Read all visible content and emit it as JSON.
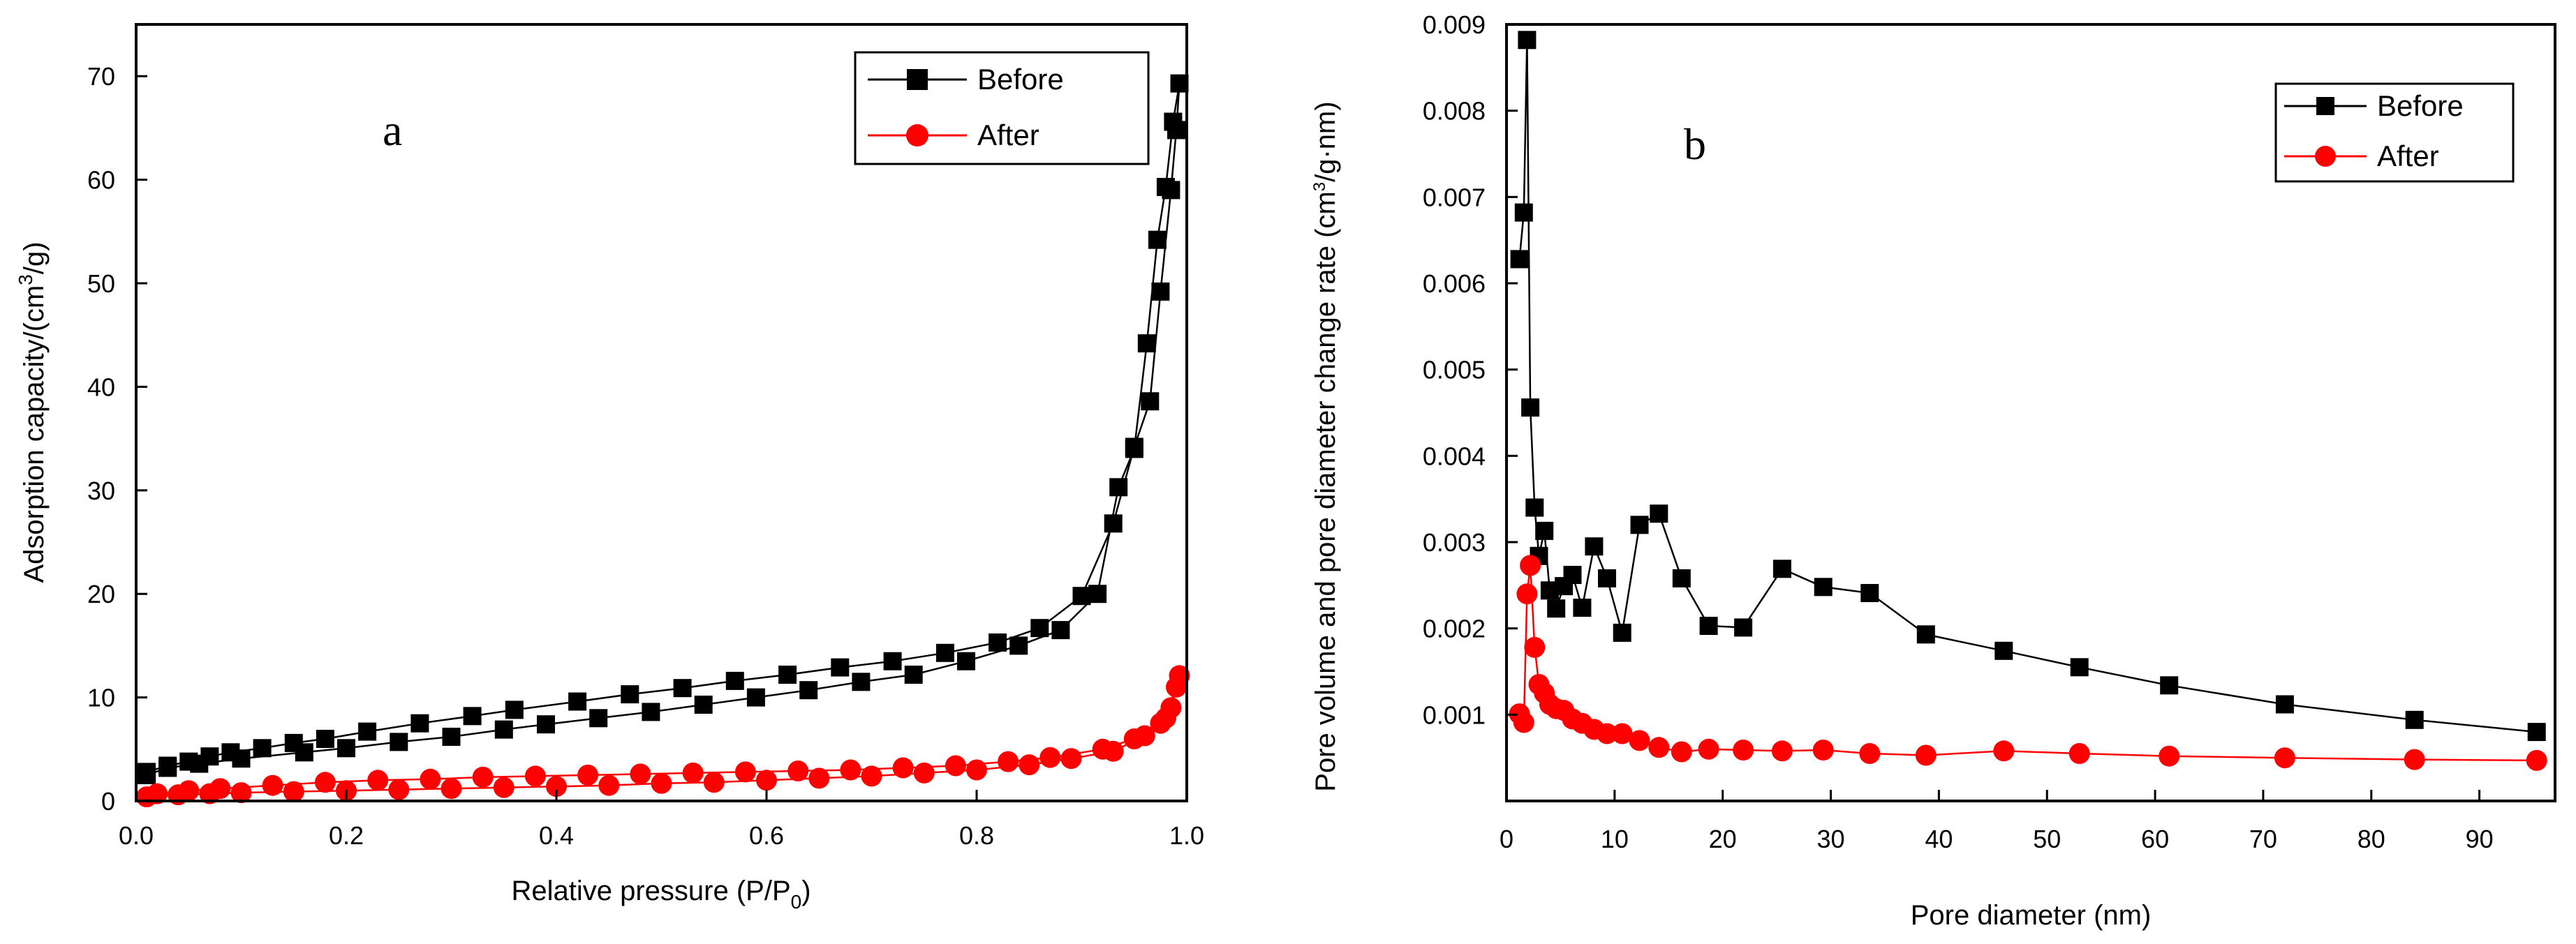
{
  "chart_data": [
    {
      "type": "scatter",
      "panel_label": "a",
      "title": "",
      "xlabel": "Relative pressure (P/P",
      "xlabel_sub": "0",
      "xlabel_end": ")",
      "ylabel": "Adsorption capacity/(cm",
      "ylabel_sup": "3",
      "ylabel_end": "/g)",
      "xlim": [
        0,
        1.0
      ],
      "ylim": [
        0,
        75
      ],
      "xticks": [
        "0.0",
        "0.2",
        "0.4",
        "0.6",
        "0.8",
        "1.0"
      ],
      "xtick_values": [
        0,
        0.2,
        0.4,
        0.6,
        0.8,
        1.0
      ],
      "yticks": [
        "0",
        "10",
        "20",
        "30",
        "40",
        "50",
        "60",
        "70"
      ],
      "ytick_values": [
        0,
        10,
        20,
        30,
        40,
        50,
        60,
        70
      ],
      "legend": "top-right",
      "series": [
        {
          "name": "Before",
          "marker": "square",
          "color": "#000000",
          "x": [
            0.01,
            0.03,
            0.05,
            0.07,
            0.09,
            0.12,
            0.15,
            0.18,
            0.22,
            0.27,
            0.32,
            0.36,
            0.42,
            0.47,
            0.52,
            0.57,
            0.62,
            0.67,
            0.72,
            0.77,
            0.82,
            0.86,
            0.9,
            0.93,
            0.95,
            0.965,
            0.975,
            0.985,
            0.99,
            0.993,
            0.987,
            0.98,
            0.972,
            0.962,
            0.95,
            0.935,
            0.915,
            0.88,
            0.84,
            0.79,
            0.74,
            0.69,
            0.64,
            0.59,
            0.54,
            0.49,
            0.44,
            0.39,
            0.35,
            0.3,
            0.25,
            0.2,
            0.16,
            0.1,
            0.06,
            0.03,
            0.01
          ],
          "y": [
            2.8,
            3.4,
            3.8,
            4.3,
            4.7,
            5.1,
            5.6,
            6.0,
            6.7,
            7.5,
            8.2,
            8.8,
            9.6,
            10.3,
            10.9,
            11.6,
            12.2,
            12.9,
            13.5,
            14.3,
            15.3,
            16.7,
            19.8,
            26.8,
            34.2,
            38.6,
            49.2,
            59.0,
            64.8,
            69.3,
            65.6,
            59.3,
            54.2,
            44.2,
            34.0,
            30.3,
            20.0,
            16.5,
            15.0,
            13.5,
            12.2,
            11.5,
            10.7,
            10.0,
            9.3,
            8.6,
            8.0,
            7.4,
            6.9,
            6.2,
            5.7,
            5.1,
            4.7,
            4.1,
            3.6,
            3.2,
            2.5
          ]
        },
        {
          "name": "After",
          "marker": "circle",
          "color": "#ff0000",
          "x": [
            0.01,
            0.04,
            0.07,
            0.1,
            0.15,
            0.2,
            0.25,
            0.3,
            0.35,
            0.4,
            0.45,
            0.5,
            0.55,
            0.6,
            0.65,
            0.7,
            0.75,
            0.8,
            0.85,
            0.89,
            0.93,
            0.96,
            0.975,
            0.985,
            0.99,
            0.993,
            0.98,
            0.95,
            0.92,
            0.87,
            0.83,
            0.78,
            0.73,
            0.68,
            0.63,
            0.58,
            0.53,
            0.48,
            0.43,
            0.38,
            0.33,
            0.28,
            0.23,
            0.18,
            0.13,
            0.08,
            0.05,
            0.02
          ],
          "y": [
            0.4,
            0.6,
            0.7,
            0.8,
            0.9,
            1.0,
            1.1,
            1.2,
            1.3,
            1.4,
            1.5,
            1.7,
            1.8,
            2.0,
            2.2,
            2.4,
            2.7,
            3.0,
            3.5,
            4.1,
            4.8,
            6.3,
            7.5,
            9.0,
            11.0,
            12.1,
            8.0,
            6.0,
            5.0,
            4.2,
            3.8,
            3.4,
            3.2,
            3.0,
            2.9,
            2.8,
            2.7,
            2.6,
            2.5,
            2.4,
            2.3,
            2.1,
            2.0,
            1.8,
            1.5,
            1.2,
            1.0,
            0.7
          ]
        }
      ]
    },
    {
      "type": "line",
      "panel_label": "b",
      "title": "",
      "xlabel": "Pore diameter (nm)",
      "ylabel": "Pore volume and pore diameter change rate (cm",
      "ylabel_sup": "3",
      "ylabel_end": "/g·nm)",
      "xlim": [
        0,
        97
      ],
      "ylim": [
        0,
        0.009
      ],
      "xticks": [
        "0",
        "10",
        "20",
        "30",
        "40",
        "50",
        "60",
        "70",
        "80",
        "90"
      ],
      "xtick_values": [
        0,
        10,
        20,
        30,
        40,
        50,
        60,
        70,
        80,
        90
      ],
      "yticks": [
        "0.001",
        "0.002",
        "0.003",
        "0.004",
        "0.005",
        "0.006",
        "0.007",
        "0.008",
        "0.009"
      ],
      "ytick_values": [
        0.001,
        0.002,
        0.003,
        0.004,
        0.005,
        0.006,
        0.007,
        0.008,
        0.009
      ],
      "legend": "top-right",
      "series": [
        {
          "name": "Before",
          "marker": "square",
          "color": "#000000",
          "x": [
            1.2,
            1.6,
            1.9,
            2.2,
            2.6,
            3.0,
            3.5,
            4.0,
            4.6,
            5.3,
            6.1,
            7.0,
            8.1,
            9.3,
            10.7,
            12.3,
            14.1,
            16.2,
            18.7,
            21.9,
            25.5,
            29.3,
            33.6,
            38.8,
            46.0,
            53.0,
            61.3,
            72.0,
            84.0,
            95.3
          ],
          "y": [
            0.00628,
            0.00682,
            0.00882,
            0.00456,
            0.0034,
            0.00284,
            0.00313,
            0.00244,
            0.00223,
            0.00249,
            0.00262,
            0.00224,
            0.00295,
            0.00258,
            0.00195,
            0.0032,
            0.00333,
            0.00258,
            0.00203,
            0.00201,
            0.00269,
            0.00248,
            0.00241,
            0.00193,
            0.00174,
            0.00155,
            0.00134,
            0.00112,
            0.00094,
            0.0008
          ]
        },
        {
          "name": "After",
          "marker": "circle",
          "color": "#ff0000",
          "x": [
            1.2,
            1.6,
            1.9,
            2.2,
            2.6,
            3.0,
            3.5,
            4.0,
            4.6,
            5.3,
            6.1,
            7.0,
            8.1,
            9.3,
            10.7,
            12.3,
            14.1,
            16.2,
            18.7,
            21.9,
            25.5,
            29.3,
            33.6,
            38.8,
            46.0,
            53.0,
            61.3,
            72.0,
            84.0,
            95.3
          ],
          "y": [
            0.00101,
            0.00091,
            0.0024,
            0.00273,
            0.00178,
            0.00135,
            0.00125,
            0.00112,
            0.00107,
            0.00105,
            0.00095,
            0.0009,
            0.00083,
            0.00078,
            0.00078,
            0.0007,
            0.00062,
            0.00057,
            0.0006,
            0.00059,
            0.00058,
            0.00059,
            0.00055,
            0.00053,
            0.00058,
            0.00055,
            0.00052,
            0.0005,
            0.00048,
            0.00047
          ]
        }
      ]
    }
  ]
}
